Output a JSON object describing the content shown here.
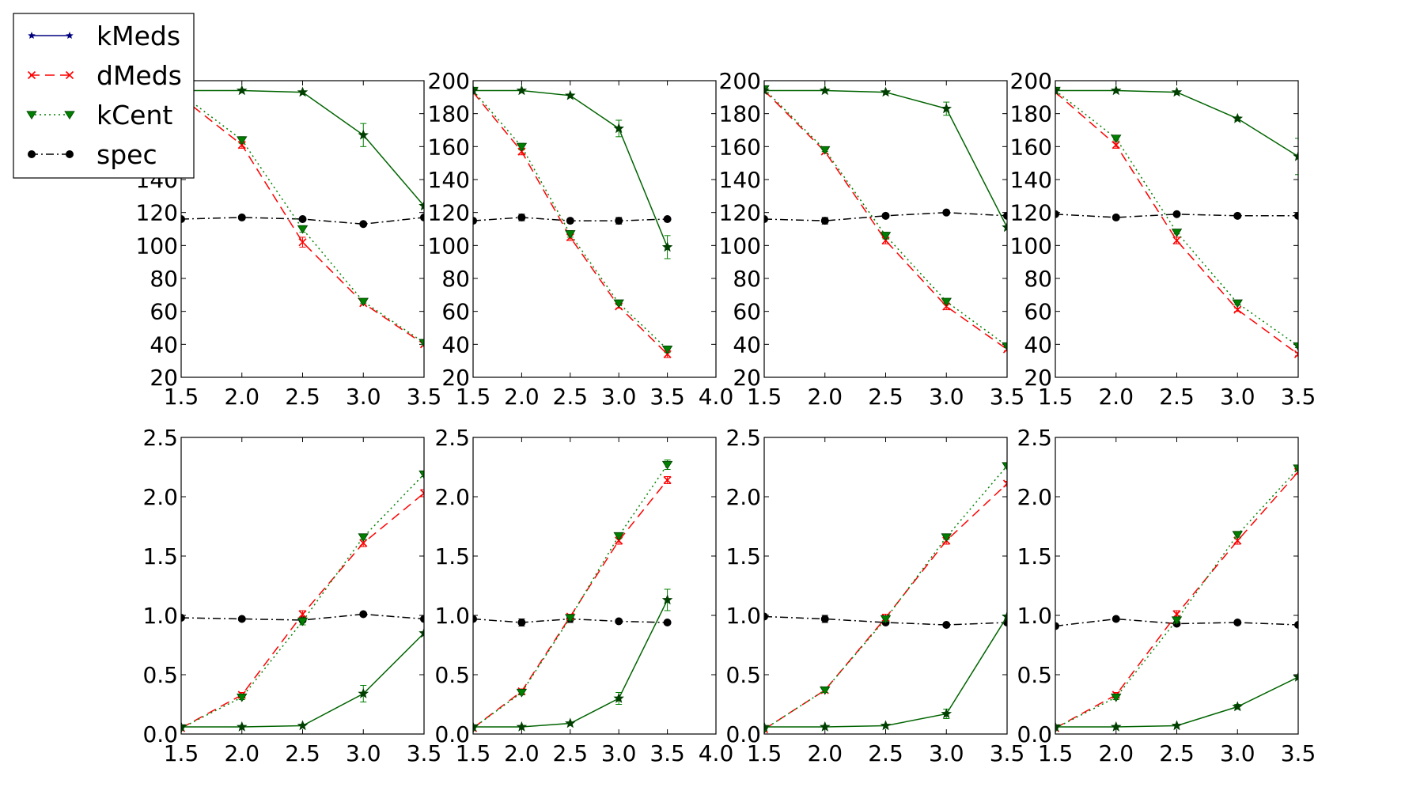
{
  "figure": {
    "legend": [
      {
        "name": "kMeds",
        "color": "#00007f",
        "dash": "",
        "marker": "star"
      },
      {
        "name": "dMeds",
        "color": "#ff0000",
        "dash": "12,7",
        "marker": "x"
      },
      {
        "name": "kCent",
        "color": "#007f00",
        "dash": "2,4",
        "marker": "tri"
      },
      {
        "name": "spec",
        "color": "#000000",
        "dash": "10,4,2,4",
        "marker": "circle"
      }
    ]
  },
  "chart_data": [
    {
      "type": "line",
      "row": 0,
      "col": 0,
      "xlim": [
        1.5,
        3.5
      ],
      "ylim": [
        20,
        200
      ],
      "xticks": [
        "1.5",
        "2.0",
        "2.5",
        "3.0",
        "3.5"
      ],
      "yticks": [
        "20",
        "40",
        "60",
        "80",
        "100",
        "120",
        "140",
        "160",
        "180",
        "200"
      ],
      "x": [
        1.5,
        2.0,
        2.5,
        3.0,
        3.5
      ],
      "series": [
        {
          "name": "kMeds",
          "values": [
            194,
            194,
            193,
            167,
            124
          ],
          "err": [
            0,
            0,
            0,
            7,
            0
          ]
        },
        {
          "name": "dMeds",
          "values": [
            190,
            161,
            102,
            65,
            40
          ],
          "err": [
            0,
            2,
            3,
            1,
            1
          ]
        },
        {
          "name": "kCent",
          "values": [
            192,
            164,
            110,
            66,
            41
          ],
          "err": [
            0,
            2,
            2,
            1,
            1
          ]
        },
        {
          "name": "spec",
          "values": [
            116,
            117,
            116,
            113,
            117
          ],
          "err": [
            0,
            0,
            0,
            0,
            0
          ]
        }
      ]
    },
    {
      "type": "line",
      "row": 0,
      "col": 1,
      "xlim": [
        1.5,
        4.0
      ],
      "ylim": [
        20,
        200
      ],
      "xticks": [
        "1.5",
        "2.0",
        "2.5",
        "3.0",
        "3.5",
        "4.0"
      ],
      "yticks": [
        "20",
        "40",
        "60",
        "80",
        "100",
        "120",
        "140",
        "160",
        "180",
        "200"
      ],
      "x": [
        1.5,
        2.0,
        2.5,
        3.0,
        3.5
      ],
      "series": [
        {
          "name": "kMeds",
          "values": [
            194,
            194,
            191,
            171,
            99
          ],
          "err": [
            0,
            0,
            0,
            5,
            7
          ]
        },
        {
          "name": "dMeds",
          "values": [
            193,
            157,
            105,
            63,
            34
          ],
          "err": [
            0,
            2,
            2,
            1,
            2
          ]
        },
        {
          "name": "kCent",
          "values": [
            194,
            160,
            107,
            65,
            37
          ],
          "err": [
            0,
            2,
            2,
            1,
            2
          ]
        },
        {
          "name": "spec",
          "values": [
            115,
            117,
            115,
            115,
            116
          ],
          "err": [
            0,
            2,
            0,
            2,
            0
          ]
        }
      ]
    },
    {
      "type": "line",
      "row": 0,
      "col": 2,
      "xlim": [
        1.5,
        3.5
      ],
      "ylim": [
        20,
        200
      ],
      "xticks": [
        "1.5",
        "2.0",
        "2.5",
        "3.0",
        "3.5"
      ],
      "yticks": [
        "20",
        "40",
        "60",
        "80",
        "100",
        "120",
        "140",
        "160",
        "180",
        "200"
      ],
      "x": [
        1.5,
        2.0,
        2.5,
        3.0,
        3.5
      ],
      "series": [
        {
          "name": "kMeds",
          "values": [
            194,
            194,
            193,
            183,
            111
          ],
          "err": [
            0,
            0,
            0,
            4,
            0
          ]
        },
        {
          "name": "dMeds",
          "values": [
            194,
            157,
            103,
            63,
            37
          ],
          "err": [
            0,
            1,
            2,
            2,
            1
          ]
        },
        {
          "name": "kCent",
          "values": [
            195,
            158,
            106,
            66,
            39
          ],
          "err": [
            0,
            1,
            2,
            1,
            1
          ]
        },
        {
          "name": "spec",
          "values": [
            116,
            115,
            118,
            120,
            118
          ],
          "err": [
            0,
            2,
            0,
            0,
            0
          ]
        }
      ]
    },
    {
      "type": "line",
      "row": 0,
      "col": 3,
      "xlim": [
        1.5,
        3.5
      ],
      "ylim": [
        20,
        200
      ],
      "xticks": [
        "1.5",
        "2.0",
        "2.5",
        "3.0",
        "3.5"
      ],
      "yticks": [
        "20",
        "40",
        "60",
        "80",
        "100",
        "120",
        "140",
        "160",
        "180",
        "200"
      ],
      "x": [
        1.5,
        2.0,
        2.5,
        3.0,
        3.5
      ],
      "series": [
        {
          "name": "kMeds",
          "values": [
            194,
            194,
            193,
            177,
            154
          ],
          "err": [
            0,
            0,
            0,
            1,
            11
          ]
        },
        {
          "name": "dMeds",
          "values": [
            193,
            161,
            103,
            61,
            34
          ],
          "err": [
            0,
            2,
            2,
            1,
            1
          ]
        },
        {
          "name": "kCent",
          "values": [
            194,
            165,
            108,
            65,
            39
          ],
          "err": [
            0,
            1,
            1,
            1,
            1
          ]
        },
        {
          "name": "spec",
          "values": [
            119,
            117,
            119,
            118,
            118
          ],
          "err": [
            0,
            0,
            0,
            0,
            0
          ]
        }
      ]
    },
    {
      "type": "line",
      "row": 1,
      "col": 0,
      "xlim": [
        1.5,
        3.5
      ],
      "ylim": [
        0.0,
        2.5
      ],
      "xticks": [
        "1.5",
        "2.0",
        "2.5",
        "3.0",
        "3.5"
      ],
      "yticks": [
        "0.0",
        "0.5",
        "1.0",
        "1.5",
        "2.0",
        "2.5"
      ],
      "x": [
        1.5,
        2.0,
        2.5,
        3.0,
        3.5
      ],
      "series": [
        {
          "name": "kMeds",
          "values": [
            0.06,
            0.06,
            0.07,
            0.34,
            0.85
          ],
          "err": [
            0,
            0,
            0,
            0.07,
            0
          ]
        },
        {
          "name": "dMeds",
          "values": [
            0.05,
            0.33,
            1.01,
            1.61,
            2.03
          ],
          "err": [
            0,
            0.02,
            0.03,
            0.03,
            0.03
          ]
        },
        {
          "name": "kCent",
          "values": [
            0.05,
            0.31,
            0.95,
            1.66,
            2.19
          ],
          "err": [
            0,
            0.02,
            0.03,
            0.02,
            0.02
          ]
        },
        {
          "name": "spec",
          "values": [
            0.98,
            0.97,
            0.96,
            1.01,
            0.97
          ],
          "err": [
            0,
            0,
            0,
            0,
            0
          ]
        }
      ]
    },
    {
      "type": "line",
      "row": 1,
      "col": 1,
      "xlim": [
        1.5,
        4.0
      ],
      "ylim": [
        0.0,
        2.5
      ],
      "xticks": [
        "1.5",
        "2.0",
        "2.5",
        "3.0",
        "3.5",
        "4.0"
      ],
      "yticks": [
        "0.0",
        "0.5",
        "1.0",
        "1.5",
        "2.0",
        "2.5"
      ],
      "x": [
        1.5,
        2.0,
        2.5,
        3.0,
        3.5
      ],
      "series": [
        {
          "name": "kMeds",
          "values": [
            0.06,
            0.06,
            0.09,
            0.3,
            1.13
          ],
          "err": [
            0,
            0,
            0,
            0.05,
            0.09
          ]
        },
        {
          "name": "dMeds",
          "values": [
            0.05,
            0.36,
            0.99,
            1.63,
            2.14
          ],
          "err": [
            0,
            0.02,
            0.02,
            0.03,
            0.03
          ]
        },
        {
          "name": "kCent",
          "values": [
            0.05,
            0.35,
            0.98,
            1.67,
            2.27
          ],
          "err": [
            0,
            0.02,
            0.02,
            0.02,
            0.04
          ]
        },
        {
          "name": "spec",
          "values": [
            0.97,
            0.94,
            0.97,
            0.95,
            0.94
          ],
          "err": [
            0,
            0.03,
            0.03,
            0,
            0
          ]
        }
      ]
    },
    {
      "type": "line",
      "row": 1,
      "col": 2,
      "xlim": [
        1.5,
        3.5
      ],
      "ylim": [
        0.0,
        2.5
      ],
      "xticks": [
        "1.5",
        "2.0",
        "2.5",
        "3.0",
        "3.5"
      ],
      "yticks": [
        "0.0",
        "0.5",
        "1.0",
        "1.5",
        "2.0",
        "2.5"
      ],
      "x": [
        1.5,
        2.0,
        2.5,
        3.0,
        3.5
      ],
      "series": [
        {
          "name": "kMeds",
          "values": [
            0.06,
            0.06,
            0.07,
            0.17,
            0.99
          ],
          "err": [
            0,
            0,
            0,
            0.04,
            0
          ]
        },
        {
          "name": "dMeds",
          "values": [
            0.04,
            0.37,
            0.98,
            1.63,
            2.11
          ],
          "err": [
            0,
            0.02,
            0.03,
            0.03,
            0.02
          ]
        },
        {
          "name": "kCent",
          "values": [
            0.04,
            0.37,
            0.97,
            1.66,
            2.26
          ],
          "err": [
            0,
            0.02,
            0.02,
            0.02,
            0.02
          ]
        },
        {
          "name": "spec",
          "values": [
            0.99,
            0.97,
            0.94,
            0.92,
            0.94
          ],
          "err": [
            0,
            0.03,
            0,
            0,
            0
          ]
        }
      ]
    },
    {
      "type": "line",
      "row": 1,
      "col": 3,
      "xlim": [
        1.5,
        3.5
      ],
      "ylim": [
        0.0,
        2.5
      ],
      "xticks": [
        "1.5",
        "2.0",
        "2.5",
        "3.0",
        "3.5"
      ],
      "yticks": [
        "0.0",
        "0.5",
        "1.0",
        "1.5",
        "2.0",
        "2.5"
      ],
      "x": [
        1.5,
        2.0,
        2.5,
        3.0,
        3.5
      ],
      "series": [
        {
          "name": "kMeds",
          "values": [
            0.06,
            0.06,
            0.07,
            0.23,
            0.48
          ],
          "err": [
            0,
            0,
            0,
            0.02,
            0
          ]
        },
        {
          "name": "dMeds",
          "values": [
            0.05,
            0.33,
            1.01,
            1.63,
            2.21
          ],
          "err": [
            0,
            0.02,
            0.03,
            0.03,
            0.02
          ]
        },
        {
          "name": "kCent",
          "values": [
            0.05,
            0.31,
            0.96,
            1.68,
            2.24
          ],
          "err": [
            0,
            0.02,
            0.02,
            0.02,
            0.02
          ]
        },
        {
          "name": "spec",
          "values": [
            0.91,
            0.97,
            0.93,
            0.94,
            0.92
          ],
          "err": [
            0,
            0,
            0,
            0,
            0
          ]
        }
      ]
    }
  ]
}
